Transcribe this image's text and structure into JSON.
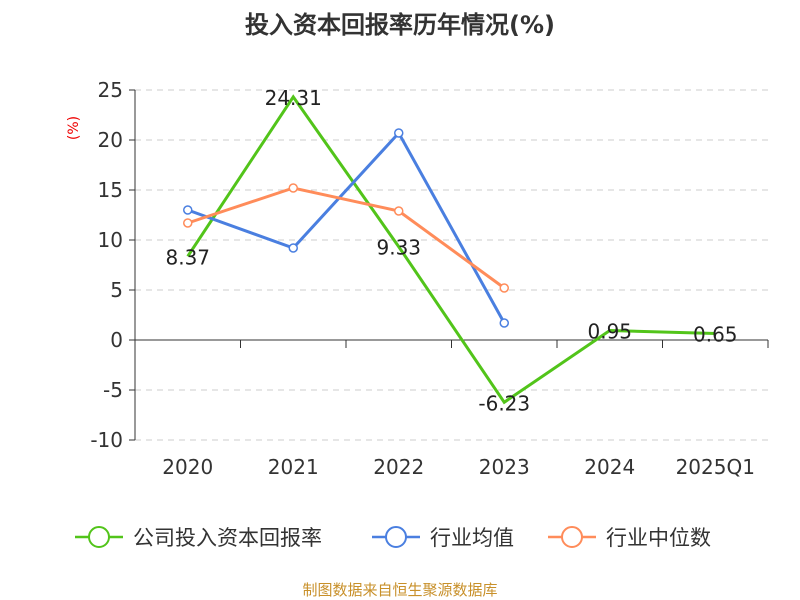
{
  "chart_data": {
    "type": "line",
    "title": "投入资本回报率历年情况(%)",
    "ylabel": "(%)",
    "xlabel": "",
    "ylim": [
      -10,
      25
    ],
    "yticks": [
      25,
      20,
      15,
      10,
      5,
      0,
      -5,
      -10
    ],
    "grid": true,
    "legend_position": "bottom",
    "categories": [
      "2020",
      "2021",
      "2022",
      "2023",
      "2024",
      "2025Q1"
    ],
    "series": [
      {
        "name": "公司投入资本回报率",
        "color": "#52c41a",
        "values": [
          8.37,
          24.31,
          9.33,
          -6.23,
          0.95,
          0.65
        ],
        "labels": [
          "8.37",
          "24.31",
          "9.33",
          "-6.23",
          "0.95",
          "0.65"
        ],
        "markers": false
      },
      {
        "name": "行业均值",
        "color": "#4a7fe0",
        "values": [
          13.0,
          9.2,
          20.7,
          1.7,
          null,
          null
        ],
        "markers": true
      },
      {
        "name": "行业中位数",
        "color": "#ff8c5a",
        "values": [
          11.7,
          15.2,
          12.9,
          5.2,
          null,
          null
        ],
        "markers": true
      }
    ],
    "source": "制图数据来自恒生聚源数据库",
    "source_color": "#c8902a"
  }
}
